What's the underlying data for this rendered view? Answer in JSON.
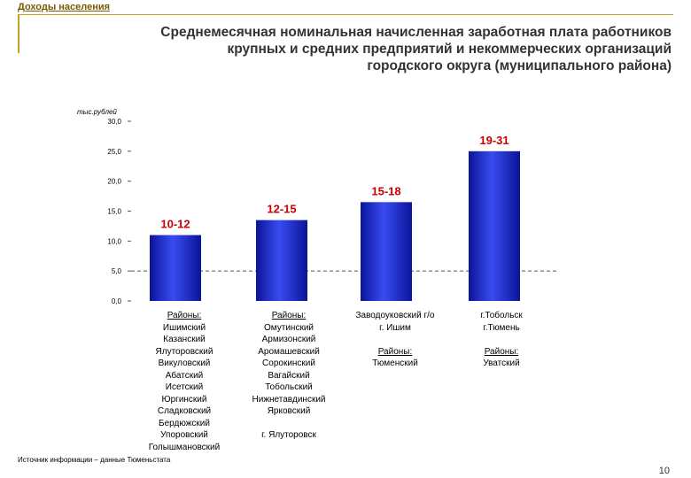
{
  "header": {
    "section": "Доходы населения",
    "title_lines": [
      "Среднемесячная номинальная начисленная заработная плата работников",
      "крупных и средних предприятий и некоммерческих организаций",
      "городского округа (муниципального района)"
    ]
  },
  "chart_data": {
    "type": "bar",
    "ylabel": "тыс.рублей",
    "ylim": [
      0,
      30
    ],
    "ticks": [
      "0,0",
      "5,0",
      "10,0",
      "15,0",
      "20,0",
      "25,0",
      "30,0"
    ],
    "categories": [
      "10-12",
      "12-15",
      "15-18",
      "19-31"
    ],
    "values": [
      11,
      13.5,
      16.5,
      25
    ],
    "bar_labels": [
      "10-12",
      "12-15",
      "15-18",
      "19-31"
    ],
    "bar_color": "#2233cc",
    "label_color": "#cc0000",
    "reference_line": 5
  },
  "groups": [
    {
      "header": "Районы:",
      "items": [
        "Ишимский",
        "Казанский",
        "Ялуторовский",
        "Викуловский",
        "Абатский",
        "Исетский",
        "Юргинский",
        "Сладковский",
        "Бердюжский",
        "Упоровский",
        "Голышмановский"
      ]
    },
    {
      "header": "Районы:",
      "items": [
        "Омутинский",
        "Армизонский",
        "Аромашевский",
        "Сорокинский",
        "Вагайский",
        "Тобольский",
        "Нижнетавдинский",
        "Ярковский"
      ],
      "extra": "г. Ялуторовск"
    },
    {
      "lines": [
        "Заводоуковский г/о",
        "г. Ишим"
      ],
      "header": "Районы:",
      "items": [
        "Тюменский"
      ]
    },
    {
      "lines": [
        "г.Тобольск",
        "г.Тюмень"
      ],
      "header": "Районы:",
      "items": [
        "Уватский"
      ]
    }
  ],
  "footer": {
    "source": "Источник информации – данные Тюменьстата",
    "page": "10"
  }
}
